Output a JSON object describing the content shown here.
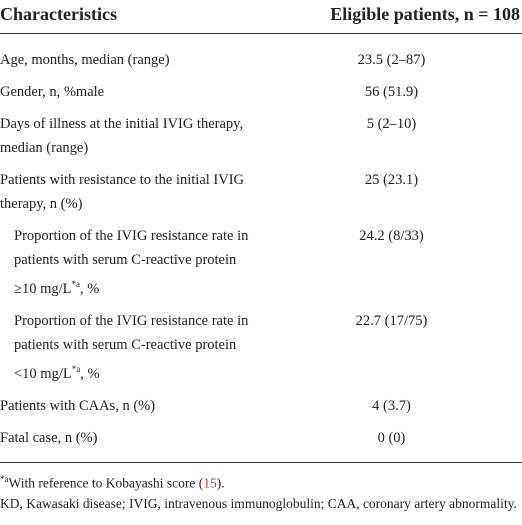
{
  "table": {
    "header": [
      "Characteristics",
      "Eligible patients, n = 108"
    ],
    "rows": [
      {
        "label": [
          "Age, months, median (range)"
        ],
        "value": "23.5 (2–87)"
      },
      {
        "label": [
          "Gender, n, %male"
        ],
        "value": "56 (51.9)"
      },
      {
        "label": [
          "Days of illness at the initial IVIG therapy, median (range)"
        ],
        "value": "5 (2–10)"
      },
      {
        "label": [
          "Patients with resistance to the initial IVIG therapy, n (%)"
        ],
        "value": "25 (23.1)"
      },
      {
        "label": [
          "Proportion of the IVIG resistance rate in patients with serum C-reactive protein ≥10 mg/L",
          "*a",
          ", %"
        ],
        "value": "24.2 (8/33)",
        "indent": true
      },
      {
        "label": [
          "Proportion of the IVIG resistance rate in patients with serum C-reactive protein <10 mg/L",
          "*a",
          ", %"
        ],
        "value": "22.7 (17/75)",
        "indent": true
      },
      {
        "label": [
          "Patients with CAAs, n (%)"
        ],
        "value": "4 (3.7)"
      },
      {
        "label": [
          "Fatal case, n (%)"
        ],
        "value": "0 (0)"
      }
    ]
  },
  "footnotes": [
    [
      "*a",
      "With reference to Kobayashi score (",
      "15",
      ")."
    ],
    [
      "KD, Kawasaki disease; IVIG, intravenous immunoglobulin; CAA, coronary artery abnormality."
    ]
  ]
}
